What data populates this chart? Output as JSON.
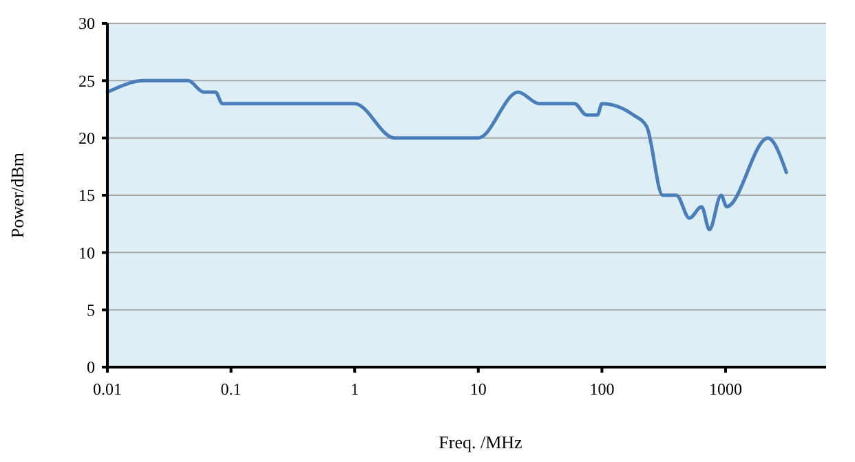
{
  "chart_data": {
    "type": "line",
    "xlabel": "Freq. /MHz",
    "ylabel": "Power/dBm",
    "log": "x",
    "grid": "y",
    "marker": "none",
    "line_style": "solid",
    "xlim": [
      0.01,
      6500
    ],
    "xticks": [
      0.01,
      0.1,
      1,
      10,
      100,
      1000
    ],
    "ylim": [
      0,
      30
    ],
    "yticks": [
      0,
      5,
      10,
      15,
      20,
      25,
      30
    ],
    "x": [
      0.01,
      0.02,
      0.045,
      0.06,
      0.075,
      0.085,
      1,
      2.1,
      2.8,
      10,
      21,
      31,
      60,
      75,
      92,
      100,
      180,
      230,
      310,
      400,
      510,
      640,
      740,
      920,
      1020,
      2200,
      3100
    ],
    "series": [
      {
        "color": "#4a7ebb",
        "values": [
          24,
          25,
          25,
          24,
          24,
          23,
          23,
          20,
          20,
          20,
          24,
          23,
          23,
          22,
          22,
          23,
          22,
          21,
          15,
          15,
          13,
          14,
          12,
          15,
          14,
          20,
          17
        ]
      }
    ]
  }
}
